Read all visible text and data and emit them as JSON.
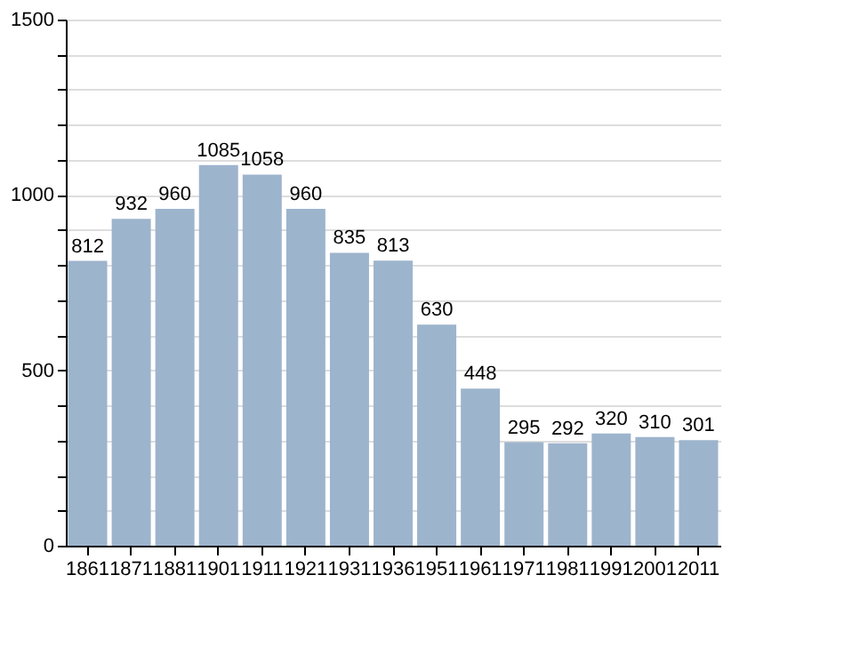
{
  "chart_data": {
    "type": "bar",
    "categories": [
      "1861",
      "1871",
      "1881",
      "1901",
      "1911",
      "1921",
      "1931",
      "1936",
      "1951",
      "1961",
      "1971",
      "1981",
      "1991",
      "2001",
      "2011"
    ],
    "values": [
      812,
      932,
      960,
      1085,
      1058,
      960,
      835,
      813,
      630,
      448,
      295,
      292,
      320,
      310,
      301
    ],
    "color": "#9db4cd",
    "ylim": [
      0,
      1500
    ],
    "yticks": [
      0,
      {
        "value": 100,
        "label": null
      },
      {
        "value": 200,
        "label": null
      },
      {
        "value": 300,
        "label": null
      },
      {
        "value": 400,
        "label": null
      },
      500,
      {
        "value": 600,
        "label": null
      },
      {
        "value": 700,
        "label": null
      },
      {
        "value": 800,
        "label": null
      },
      {
        "value": 900,
        "label": null
      },
      1000,
      {
        "value": 1100,
        "label": null
      },
      {
        "value": 1200,
        "label": null
      },
      {
        "value": 1300,
        "label": null
      },
      {
        "value": 1400,
        "label": null
      },
      1500
    ],
    "grid": "y",
    "data_labels": true
  }
}
